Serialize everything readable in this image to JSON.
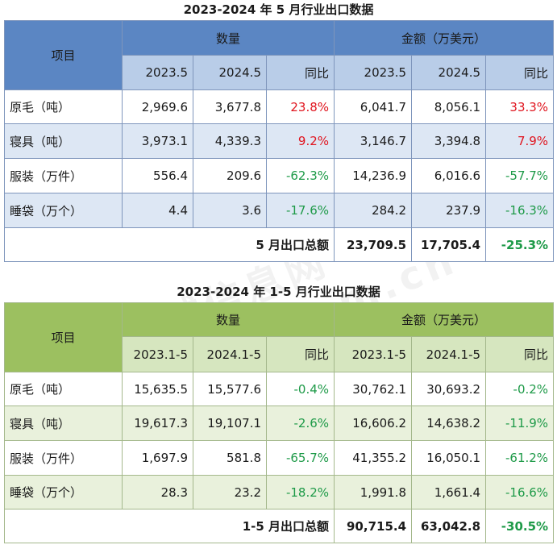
{
  "table1": {
    "title": "2023-2024 年 5 月行业出口数据",
    "item_header": "项目",
    "qty_header": "数量",
    "amt_header": "金额（万美元）",
    "sub_headers": [
      "2023.5",
      "2024.5",
      "同比",
      "2023.5",
      "2024.5",
      "同比"
    ],
    "rows": [
      {
        "label": "原毛（吨）",
        "q1": "2,969.6",
        "q2": "3,677.8",
        "qy": "23.8%",
        "a1": "6,041.7",
        "a2": "8,056.1",
        "ay": "33.3%"
      },
      {
        "label": "寝具（吨）",
        "q1": "3,973.1",
        "q2": "4,339.3",
        "qy": "9.2%",
        "a1": "3,146.7",
        "a2": "3,394.8",
        "ay": "7.9%"
      },
      {
        "label": "服装（万件）",
        "q1": "556.4",
        "q2": "209.6",
        "qy": "-62.3%",
        "a1": "14,236.9",
        "a2": "6,016.6",
        "ay": "-57.7%"
      },
      {
        "label": "睡袋（万个）",
        "q1": "4.4",
        "q2": "3.6",
        "qy": "-17.6%",
        "a1": "284.2",
        "a2": "237.9",
        "ay": "-16.3%"
      }
    ],
    "total_label": "5 月出口总额",
    "total_a1": "23,709.5",
    "total_a2": "17,705.4",
    "total_yoy": "-25.3%"
  },
  "table2": {
    "title": "2023-2024 年 1-5 月行业出口数据",
    "item_header": "项目",
    "qty_header": "数量",
    "amt_header": "金额（万美元）",
    "sub_headers": [
      "2023.1-5",
      "2024.1-5",
      "同比",
      "2023.1-5",
      "2024.1-5",
      "同比"
    ],
    "rows": [
      {
        "label": "原毛（吨）",
        "q1": "15,635.5",
        "q2": "15,577.6",
        "qy": "-0.4%",
        "a1": "30,762.1",
        "a2": "30,693.2",
        "ay": "-0.2%"
      },
      {
        "label": "寝具（吨）",
        "q1": "19,617.3",
        "q2": "19,107.1",
        "qy": "-2.6%",
        "a1": "16,606.2",
        "a2": "14,638.2",
        "ay": "-11.9%"
      },
      {
        "label": "服装（万件）",
        "q1": "1,697.9",
        "q2": "581.8",
        "qy": "-65.7%",
        "a1": "41,355.2",
        "a2": "16,050.1",
        "ay": "-61.2%"
      },
      {
        "label": "睡袋（万个）",
        "q1": "28.3",
        "q2": "23.2",
        "qy": "-18.2%",
        "a1": "1,991.8",
        "a2": "1,661.4",
        "ay": "-16.6%"
      }
    ],
    "total_label": "1-5 月出口总额",
    "total_a1": "90,715.4",
    "total_a2": "63,042.8",
    "total_yoy": "-30.5%"
  },
  "colors": {
    "positive": "#e0141e",
    "negative": "#1e9a48",
    "table1_header": "#5b86c3",
    "table2_header": "#9cc060"
  },
  "watermark": "中国羽绒信息网 www.cfd.com.cn"
}
